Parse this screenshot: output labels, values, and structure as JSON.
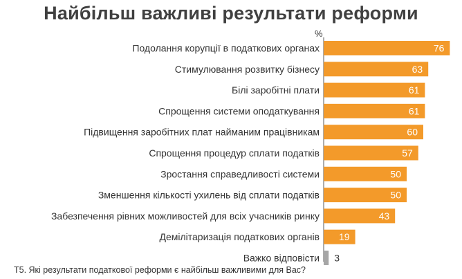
{
  "chart_data": {
    "type": "bar",
    "orientation": "horizontal",
    "title": "Найбільш важливі результати реформи",
    "unit_label": "%",
    "categories": [
      "Подолання корупції в податкових органах",
      "Стимулювання розвитку бізнесу",
      "Білі заробітні плати",
      "Спрощення системи оподаткування",
      "Підвищення заробітних плат найманим працівникам",
      "Спрощення процедур сплати податків",
      "Зростання справедливості системи",
      "Зменшення кількості ухилень від сплати податків",
      "Забезпечення рівних можливостей для всіх  учасників ринку",
      "Демілітаризація податкових органів",
      "Важко відповісти"
    ],
    "values": [
      76,
      63,
      61,
      61,
      60,
      57,
      50,
      50,
      43,
      19,
      3
    ],
    "xlim": [
      0,
      80
    ],
    "grid": false,
    "legend": "none",
    "footnote": "Т5. Які результати податкової реформи є найбільш важливими для Вас?",
    "colors": {
      "bar": "#F39A2A",
      "bar_muted": "#A6A6A6",
      "value_light": "#ffffff",
      "value_dark": "#333333",
      "axis": "#595959"
    }
  }
}
